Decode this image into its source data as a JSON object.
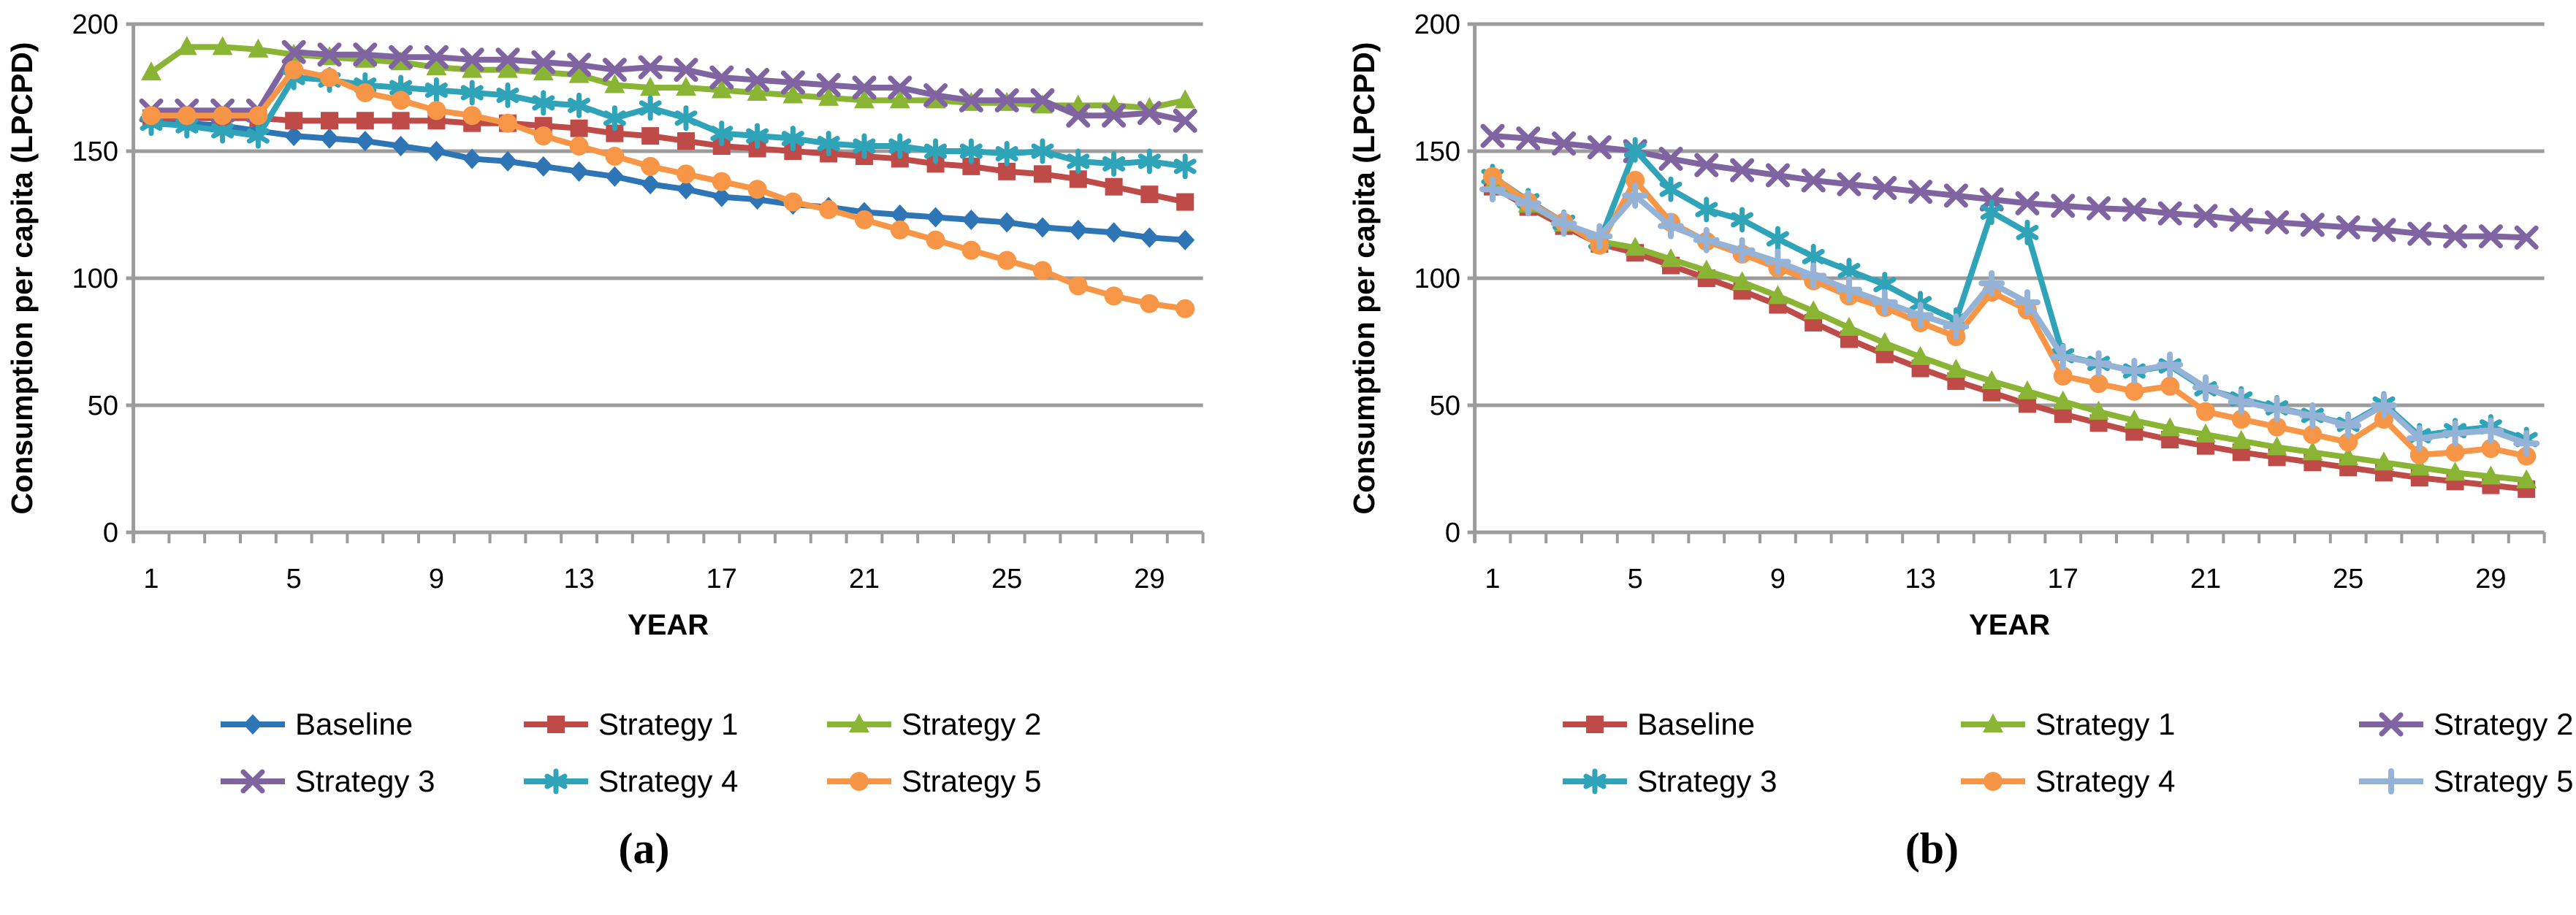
{
  "figure": {
    "panel_a_caption": "(a)",
    "panel_b_caption": "(b)"
  },
  "colors": {
    "grid": "#9C9C9C",
    "blue": "#2E75B6",
    "red": "#BE4B48",
    "green": "#8AB434",
    "purple": "#8064A2",
    "teal": "#2FA3B8",
    "orange": "#F79646",
    "lightblue": "#95B3D7"
  },
  "chart_data": [
    {
      "id": "a",
      "type": "line",
      "caption": "(a)",
      "xlabel": "YEAR",
      "ylabel": "Consumption per capita (LPCPD)",
      "ylim": [
        0,
        200
      ],
      "y_ticks": [
        0,
        50,
        100,
        150,
        200
      ],
      "x_tick_labels": [
        1,
        5,
        9,
        13,
        17,
        21,
        25,
        29
      ],
      "x": [
        1,
        2,
        3,
        4,
        5,
        6,
        7,
        8,
        9,
        10,
        11,
        12,
        13,
        14,
        15,
        16,
        17,
        18,
        19,
        20,
        21,
        22,
        23,
        24,
        25,
        26,
        27,
        28,
        29,
        30
      ],
      "grid": "horizontal",
      "legend_position": "below",
      "series": [
        {
          "name": "Baseline",
          "color": "#2E75B6",
          "marker": "diamond",
          "values": [
            162,
            161,
            160,
            158,
            156,
            155,
            154,
            152,
            150,
            147,
            146,
            144,
            142,
            140,
            137,
            135,
            132,
            131,
            129,
            128,
            126,
            125,
            124,
            123,
            122,
            120,
            119,
            118,
            116,
            115
          ]
        },
        {
          "name": "Strategy 1",
          "color": "#BE4B48",
          "marker": "square",
          "values": [
            163,
            163,
            163,
            163,
            162,
            162,
            162,
            162,
            162,
            161,
            161,
            160,
            159,
            157,
            156,
            154,
            152,
            151,
            150,
            149,
            148,
            147,
            145,
            144,
            142,
            141,
            139,
            136,
            133,
            130
          ]
        },
        {
          "name": "Strategy 2",
          "color": "#8AB434",
          "marker": "triangle",
          "values": [
            181,
            191,
            191,
            190,
            188,
            187,
            186,
            185,
            183,
            182,
            182,
            181,
            180,
            176,
            175,
            175,
            174,
            173,
            172,
            171,
            170,
            170,
            170,
            169,
            169,
            168,
            168,
            168,
            167,
            170
          ]
        },
        {
          "name": "Strategy 3",
          "color": "#8064A2",
          "marker": "x",
          "values": [
            166,
            166,
            166,
            166,
            189,
            188,
            188,
            187,
            187,
            186,
            186,
            185,
            184,
            182,
            183,
            182,
            179,
            178,
            177,
            176,
            175,
            175,
            172,
            170,
            170,
            170,
            164,
            164,
            165,
            162
          ]
        },
        {
          "name": "Strategy 4",
          "color": "#2FA3B8",
          "marker": "asterisk",
          "values": [
            161,
            160,
            158,
            156,
            179,
            178,
            176,
            175,
            174,
            173,
            172,
            169,
            168,
            163,
            167,
            163,
            157,
            156,
            155,
            153,
            152,
            152,
            150,
            150,
            149,
            150,
            146,
            145,
            146,
            144
          ]
        },
        {
          "name": "Strategy 5",
          "color": "#F79646",
          "marker": "circle",
          "values": [
            164,
            164,
            164,
            164,
            182,
            179,
            173,
            170,
            166,
            164,
            161,
            156,
            152,
            148,
            144,
            141,
            138,
            135,
            130,
            127,
            123,
            119,
            115,
            111,
            107,
            103,
            97,
            93,
            90,
            88
          ]
        }
      ]
    },
    {
      "id": "b",
      "type": "line",
      "caption": "(b)",
      "xlabel": "YEAR",
      "ylabel": "Consumption per capita (LPCPD)",
      "ylim": [
        0,
        200
      ],
      "y_ticks": [
        0,
        50,
        100,
        150,
        200
      ],
      "x_tick_labels": [
        1,
        5,
        9,
        13,
        17,
        21,
        25,
        29
      ],
      "x": [
        1,
        2,
        3,
        4,
        5,
        6,
        7,
        8,
        9,
        10,
        11,
        12,
        13,
        14,
        15,
        16,
        17,
        18,
        19,
        20,
        21,
        22,
        23,
        24,
        25,
        26,
        27,
        28,
        29,
        30
      ],
      "grid": "horizontal",
      "legend_position": "below",
      "series": [
        {
          "name": "Baseline",
          "color": "#BE4B48",
          "marker": "square",
          "values": [
            136,
            128,
            120.5,
            113.5,
            110,
            105,
            100,
            95,
            89.5,
            82.5,
            76,
            70,
            64.5,
            59.5,
            55,
            50.5,
            46.5,
            43,
            39.5,
            36.5,
            34,
            31.5,
            29.5,
            27.5,
            25.5,
            23.5,
            21.5,
            20,
            18.5,
            17
          ]
        },
        {
          "name": "Strategy 1",
          "color": "#8AB434",
          "marker": "triangle",
          "values": [
            137,
            129,
            121.5,
            114.5,
            112,
            107.5,
            103,
            98.5,
            93,
            87,
            80.5,
            74.5,
            69,
            64,
            59.5,
            55.5,
            51.5,
            47.5,
            44,
            41,
            38.5,
            36,
            33.5,
            31.5,
            29.5,
            27.5,
            25.5,
            23.5,
            22,
            20.5
          ]
        },
        {
          "name": "Strategy 2",
          "color": "#8064A2",
          "marker": "x",
          "values": [
            156,
            155,
            153,
            151.5,
            150,
            147,
            144.5,
            142.5,
            140.5,
            138.5,
            137,
            135.5,
            134,
            132.5,
            131,
            129.5,
            128.5,
            127.5,
            127,
            125.5,
            124.5,
            123,
            122,
            121,
            120,
            119,
            117.5,
            116.5,
            116.5,
            116
          ]
        },
        {
          "name": "Strategy 3",
          "color": "#2FA3B8",
          "marker": "asterisk",
          "values": [
            140,
            130.5,
            122,
            114.5,
            150.5,
            135,
            127,
            123,
            115.5,
            108.5,
            103,
            97.5,
            90,
            83.5,
            126,
            118,
            69.5,
            66.5,
            63.5,
            65.5,
            56.5,
            52.5,
            49,
            46,
            42.5,
            50.5,
            38,
            40,
            41.5,
            36.5
          ]
        },
        {
          "name": "Strategy 4",
          "color": "#F79646",
          "marker": "circle",
          "values": [
            140,
            130,
            122,
            113,
            138.5,
            122,
            114.5,
            109.5,
            104,
            99,
            93,
            88.5,
            82.5,
            77,
            94.5,
            87.5,
            61.5,
            58.5,
            55.5,
            57.5,
            47.5,
            44.5,
            41.5,
            38.5,
            35.5,
            44.5,
            30.5,
            31.5,
            33,
            30
          ]
        },
        {
          "name": "Strategy 5",
          "color": "#95B3D7",
          "marker": "plus",
          "values": [
            135,
            129.5,
            121.5,
            116.5,
            132.5,
            120.5,
            115,
            111,
            106.5,
            101,
            95.5,
            90.5,
            85.5,
            81,
            98,
            90.5,
            69,
            66.5,
            63.5,
            66,
            57,
            51.5,
            48.5,
            46,
            42,
            50,
            37,
            39,
            40,
            35
          ]
        }
      ]
    }
  ]
}
